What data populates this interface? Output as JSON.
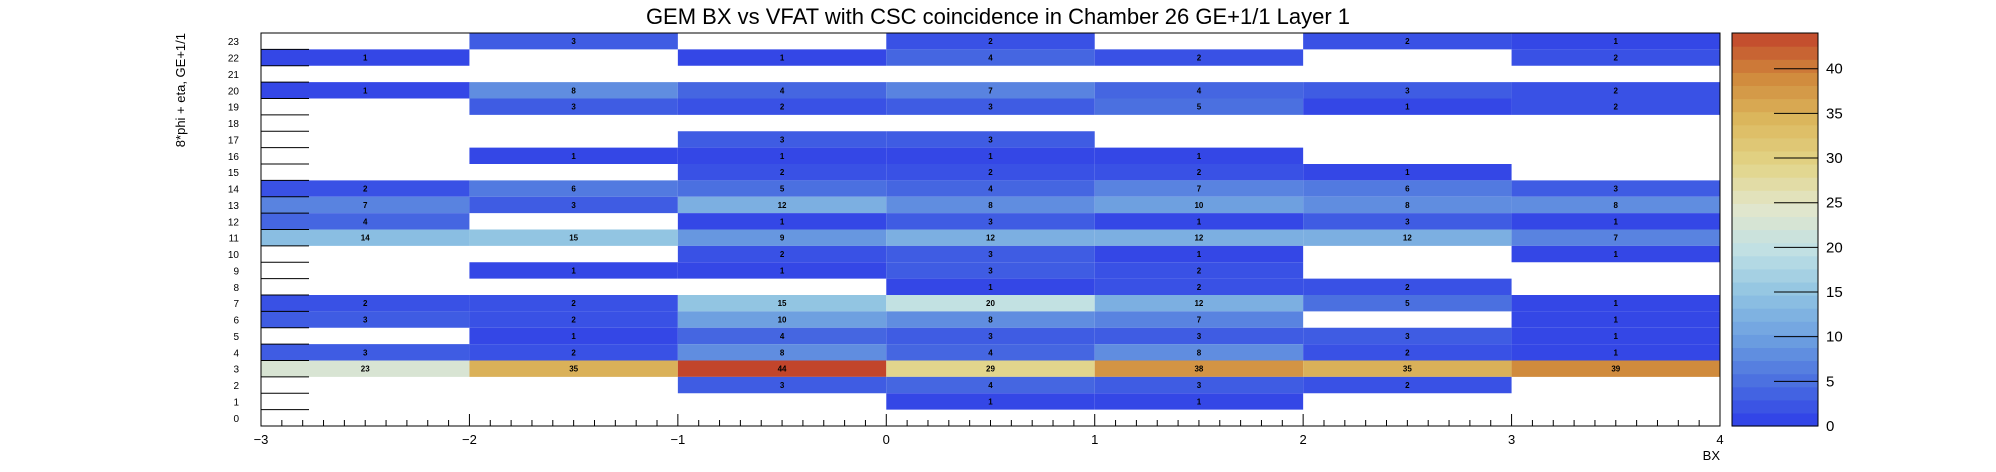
{
  "chart_data": {
    "type": "heatmap",
    "title": "GEM BX vs VFAT with CSC coincidence in Chamber 26 GE+1/1 Layer 1",
    "xlabel": "BX",
    "ylabel": "8*phi + eta, GE+1/1",
    "x_bin_edges": [
      -3,
      -2,
      -1,
      0,
      1,
      2,
      3,
      4
    ],
    "xlim": [
      -3,
      4
    ],
    "x_ticks": [
      "−3",
      "−2",
      "−1",
      "0",
      "1",
      "2",
      "3",
      "4"
    ],
    "ylim": [
      0,
      24
    ],
    "y_ticks": [
      "0",
      "1",
      "2",
      "3",
      "4",
      "5",
      "6",
      "7",
      "8",
      "9",
      "10",
      "11",
      "12",
      "13",
      "14",
      "15",
      "16",
      "17",
      "18",
      "19",
      "20",
      "21",
      "22",
      "23"
    ],
    "zlim": [
      0,
      44
    ],
    "colorbar_ticks": [
      0,
      5,
      10,
      15,
      20,
      25,
      30,
      35,
      40
    ],
    "colorbar_tick_labels": [
      "0",
      "5",
      "10",
      "15",
      "20",
      "25",
      "30",
      "35",
      "40"
    ],
    "colorscale_stops": [
      "#2e3de8",
      "#4a6fe0",
      "#6c9ee0",
      "#8fc3e2",
      "#bfe0e4",
      "#e2e6cc",
      "#e2d487",
      "#dcb85e",
      "#d08a3c",
      "#c2452b"
    ],
    "cells": [
      {
        "row": 23,
        "values": [
          0,
          3,
          0,
          2,
          0,
          2,
          1
        ]
      },
      {
        "row": 22,
        "values": [
          1,
          0,
          1,
          4,
          2,
          0,
          2
        ]
      },
      {
        "row": 21,
        "values": [
          0,
          0,
          0,
          0,
          0,
          0,
          0
        ]
      },
      {
        "row": 20,
        "values": [
          1,
          8,
          4,
          7,
          4,
          3,
          2
        ]
      },
      {
        "row": 19,
        "values": [
          0,
          3,
          2,
          3,
          5,
          1,
          2
        ]
      },
      {
        "row": 18,
        "values": [
          0,
          0,
          0,
          0,
          0,
          0,
          0
        ]
      },
      {
        "row": 17,
        "values": [
          0,
          0,
          3,
          3,
          0,
          0,
          0
        ]
      },
      {
        "row": 16,
        "values": [
          0,
          1,
          1,
          1,
          1,
          0,
          0
        ]
      },
      {
        "row": 15,
        "values": [
          0,
          0,
          2,
          2,
          2,
          1,
          0
        ]
      },
      {
        "row": 14,
        "values": [
          2,
          6,
          5,
          4,
          7,
          6,
          3
        ]
      },
      {
        "row": 13,
        "values": [
          7,
          3,
          12,
          8,
          10,
          8,
          8
        ]
      },
      {
        "row": 12,
        "values": [
          4,
          0,
          1,
          3,
          1,
          3,
          1
        ]
      },
      {
        "row": 11,
        "values": [
          14,
          15,
          9,
          12,
          12,
          12,
          7
        ]
      },
      {
        "row": 10,
        "values": [
          0,
          0,
          2,
          3,
          1,
          0,
          1
        ]
      },
      {
        "row": 9,
        "values": [
          0,
          1,
          1,
          3,
          2,
          0,
          0
        ]
      },
      {
        "row": 8,
        "values": [
          0,
          0,
          0,
          1,
          2,
          2,
          0
        ]
      },
      {
        "row": 7,
        "values": [
          2,
          2,
          15,
          20,
          12,
          5,
          1
        ]
      },
      {
        "row": 6,
        "values": [
          3,
          2,
          10,
          8,
          7,
          0,
          1
        ]
      },
      {
        "row": 5,
        "values": [
          0,
          1,
          4,
          3,
          3,
          3,
          1
        ]
      },
      {
        "row": 4,
        "values": [
          3,
          2,
          8,
          4,
          8,
          2,
          1
        ]
      },
      {
        "row": 3,
        "values": [
          23,
          35,
          44,
          29,
          38,
          35,
          39
        ]
      },
      {
        "row": 2,
        "values": [
          0,
          0,
          3,
          4,
          3,
          2,
          0
        ]
      },
      {
        "row": 1,
        "values": [
          0,
          0,
          0,
          1,
          1,
          0,
          0
        ]
      },
      {
        "row": 0,
        "values": [
          0,
          0,
          0,
          0,
          0,
          0,
          0
        ]
      }
    ]
  }
}
